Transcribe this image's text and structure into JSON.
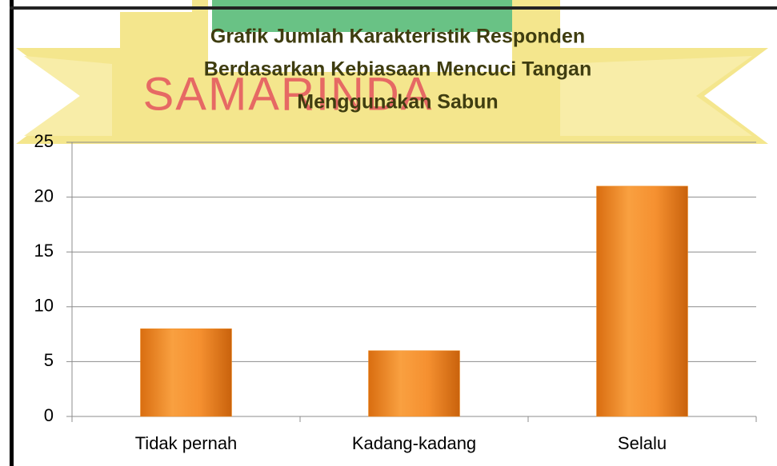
{
  "watermark": "SAMARINDA",
  "chart_data": {
    "type": "bar",
    "title": [
      "Grafik Jumlah Karakteristik Responden",
      "Berdasarkan Kebiasaan Mencuci Tangan",
      "Menggunakan Sabun"
    ],
    "categories": [
      "Tidak pernah",
      "Kadang-kadang",
      "Selalu"
    ],
    "values": [
      8,
      6,
      21
    ],
    "color": "#f08a1c",
    "ylim": [
      0,
      25
    ],
    "yticks": [
      0,
      5,
      10,
      15,
      20,
      25
    ],
    "grid": true
  }
}
